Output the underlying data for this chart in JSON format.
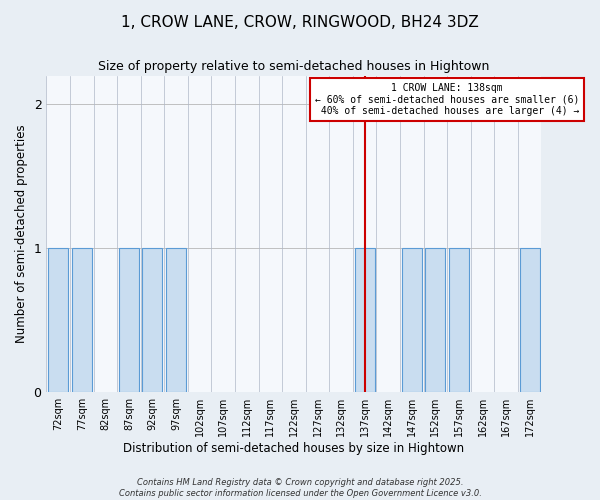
{
  "title": "1, CROW LANE, CROW, RINGWOOD, BH24 3DZ",
  "subtitle": "Size of property relative to semi-detached houses in Hightown",
  "xlabel": "Distribution of semi-detached houses by size in Hightown",
  "ylabel": "Number of semi-detached properties",
  "footer": "Contains HM Land Registry data © Crown copyright and database right 2025.\nContains public sector information licensed under the Open Government Licence v3.0.",
  "bar_categories": [
    "72sqm",
    "77sqm",
    "82sqm",
    "87sqm",
    "92sqm",
    "97sqm",
    "102sqm",
    "107sqm",
    "112sqm",
    "117sqm",
    "122sqm",
    "127sqm",
    "132sqm",
    "137sqm",
    "142sqm",
    "147sqm",
    "152sqm",
    "157sqm",
    "162sqm",
    "167sqm",
    "172sqm"
  ],
  "bar_values": [
    1,
    1,
    0,
    1,
    1,
    1,
    0,
    0,
    0,
    0,
    0,
    0,
    0,
    1,
    0,
    1,
    1,
    1,
    0,
    0,
    1
  ],
  "bar_color": "#c9ddf0",
  "bar_edge_color": "#5b9bd5",
  "highlight_bar_index": 13,
  "property_line_color": "#cc0000",
  "annotation_text": "1 CROW LANE: 138sqm\n← 60% of semi-detached houses are smaller (6)\n 40% of semi-detached houses are larger (4) →",
  "annotation_box_color": "#cc0000",
  "ylim": [
    0,
    2.2
  ],
  "yticks": [
    0,
    1,
    2
  ],
  "bg_color": "#e8eef4",
  "plot_bg_color": "#f5f8fc",
  "title_fontsize": 11,
  "subtitle_fontsize": 9,
  "footer_fontsize": 6
}
